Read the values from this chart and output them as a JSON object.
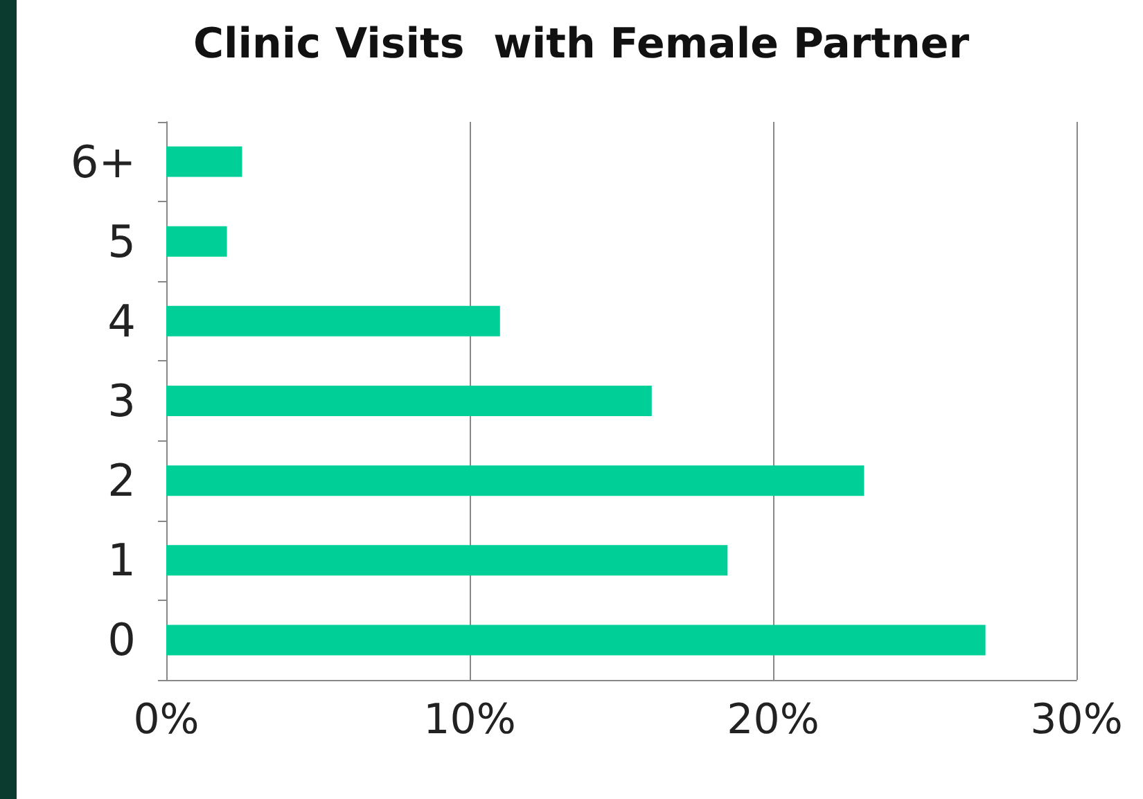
{
  "chart_data": {
    "type": "bar",
    "title": "Clinic Visits  with Female Partner",
    "orientation": "horizontal",
    "categories": [
      "6+",
      "5",
      "4",
      "3",
      "2",
      "1",
      "0"
    ],
    "values": [
      2.5,
      2.0,
      11.0,
      16.0,
      23.0,
      18.5,
      27.0
    ],
    "color": "#00d098",
    "xlim": [
      0,
      30
    ],
    "xticks": [
      {
        "value": 0,
        "label": "0%"
      },
      {
        "value": 10,
        "label": "10%"
      },
      {
        "value": 20,
        "label": "20%"
      },
      {
        "value": 30,
        "label": "30%"
      }
    ],
    "grid": "x"
  }
}
